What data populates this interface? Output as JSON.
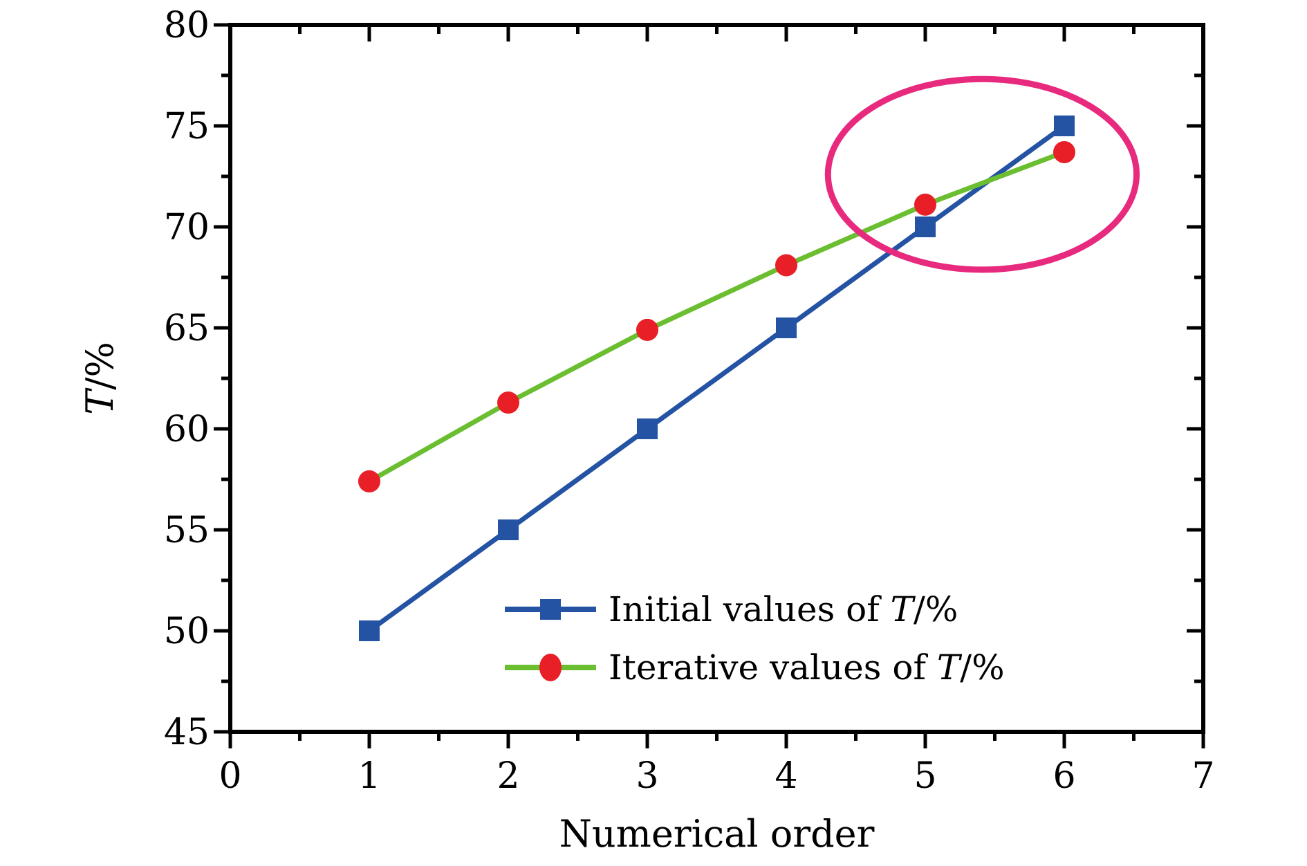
{
  "chart_data": {
    "type": "line",
    "x": [
      1,
      2,
      3,
      4,
      5,
      6
    ],
    "series": [
      {
        "name": "Initial values of T/%",
        "label_segments": [
          {
            "t": "Initial values of ",
            "italic": false
          },
          {
            "t": "T",
            "italic": true
          },
          {
            "t": "/%",
            "italic": false
          }
        ],
        "line_color": "#2553a4",
        "marker": "square",
        "marker_color": "#2553a4",
        "values": [
          50,
          55,
          60,
          65,
          70,
          75
        ]
      },
      {
        "name": "Iterative values of T/%",
        "label_segments": [
          {
            "t": "Iterative values of ",
            "italic": false
          },
          {
            "t": "T",
            "italic": true
          },
          {
            "t": "/%",
            "italic": false
          }
        ],
        "line_color": "#6abe30",
        "marker": "circle",
        "marker_color": "#e81f27",
        "values": [
          57.4,
          61.3,
          64.9,
          68.1,
          71.1,
          73.7
        ]
      }
    ],
    "title": "",
    "xlabel": "Numerical order",
    "ylabel": "T/%",
    "ylabel_segments": [
      {
        "t": "T",
        "italic": true
      },
      {
        "t": "/%",
        "italic": false
      }
    ],
    "xlim": [
      0,
      7
    ],
    "ylim": [
      45,
      80
    ],
    "x_major_step": 1,
    "x_minor_step": 0.5,
    "y_major_step": 5,
    "y_minor_step": 2.5,
    "x_tick_labels": [
      "0",
      "1",
      "2",
      "3",
      "4",
      "5",
      "6",
      "7"
    ],
    "y_tick_labels": [
      "45",
      "50",
      "55",
      "60",
      "65",
      "70",
      "75",
      "80"
    ],
    "grid": false,
    "legend_position": "inside-bottom-right",
    "annotation_ellipse": {
      "cx": 5.41,
      "cy": 72.6,
      "rx": 1.11,
      "ry": 4.72,
      "color": "#e82a7f"
    },
    "axis_color": "#000000",
    "background_color": "#ffffff"
  }
}
